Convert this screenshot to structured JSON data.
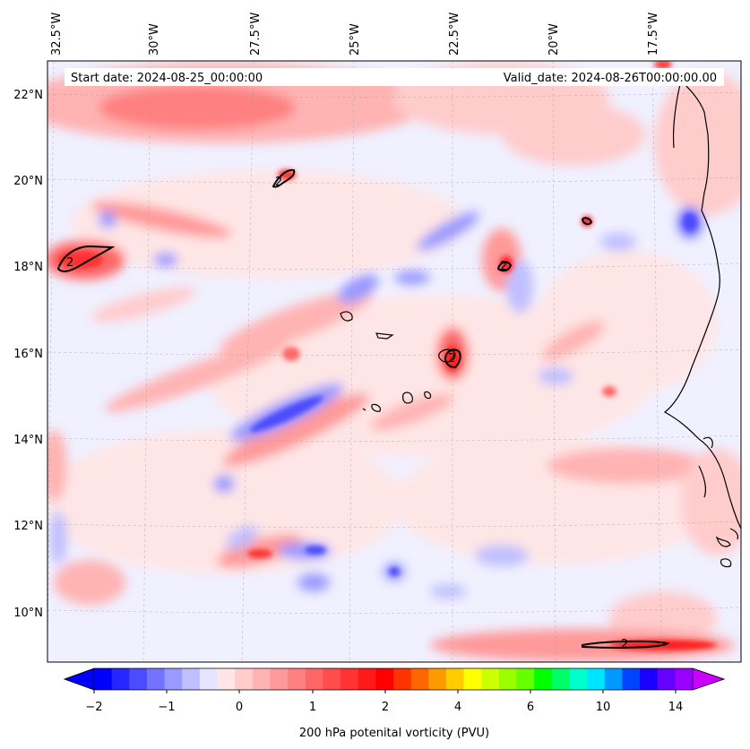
{
  "map": {
    "start_date": "Start date: 2024-08-25_00:00:00",
    "valid_date": "Valid_date: 2024-08-26T00:00:00.00",
    "lon_ticks": [
      "32.5°W",
      "30°W",
      "27.5°W",
      "25°W",
      "22.5°W",
      "20°W",
      "17.5°W"
    ],
    "lat_ticks": [
      "22°N",
      "20°N",
      "18°N",
      "16°N",
      "14°N",
      "12°N",
      "10°N"
    ],
    "contour_label": "2",
    "colors": {
      "background_field": "#f0f0ff",
      "land_line": "#000000"
    }
  },
  "colorbar": {
    "label": "200 hPa potenital vorticity (PVU)",
    "tick_labels": [
      "−2",
      "−1",
      "0",
      "1",
      "2",
      "4",
      "6",
      "10",
      "14"
    ],
    "colors": [
      "#0000ff",
      "#2626ff",
      "#4c4cff",
      "#7373ff",
      "#9999ff",
      "#bfbfff",
      "#e5e5ff",
      "#ffe6e6",
      "#ffcccc",
      "#ffb3b3",
      "#ff9999",
      "#ff8080",
      "#ff6666",
      "#ff4d4d",
      "#ff3333",
      "#ff1a1a",
      "#ff0000",
      "#ff3300",
      "#ff6600",
      "#ff9900",
      "#ffcc00",
      "#ffff00",
      "#ccff00",
      "#99ff00",
      "#66ff00",
      "#00ff00",
      "#00ff66",
      "#00ffcc",
      "#00e5ff",
      "#0099ff",
      "#0044ff",
      "#1a00ff",
      "#6600ff",
      "#9900ff"
    ],
    "under_color": "#0000ff",
    "over_color": "#cc00ff"
  }
}
